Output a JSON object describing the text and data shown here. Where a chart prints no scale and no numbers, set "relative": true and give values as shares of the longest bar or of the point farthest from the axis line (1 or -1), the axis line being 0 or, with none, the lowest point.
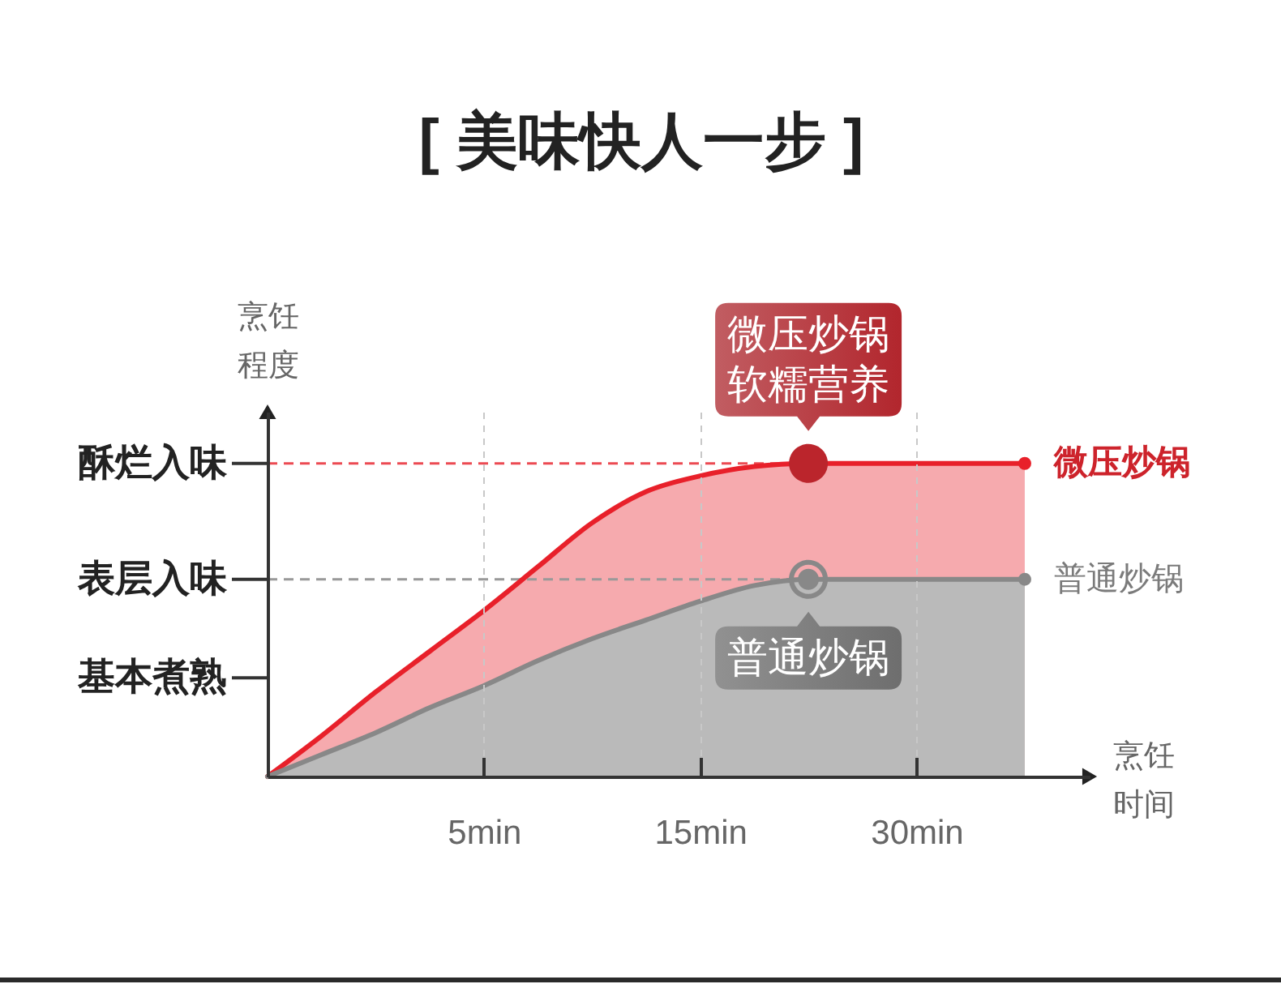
{
  "chart_data": {
    "type": "area",
    "title": "[ 美味快人一步 ]",
    "xlabel": "烹饪时间",
    "ylabel": "烹饪程度",
    "relative": true,
    "categories": [
      null,
      null,
      null,
      null,
      "5min",
      null,
      null,
      null,
      "15min",
      null,
      null,
      null,
      "30min",
      null,
      null
    ],
    "grid": "x",
    "series": [
      {
        "name": "微压炒锅",
        "color": "#e8202a",
        "values": [
          0,
          0.13,
          0.27,
          0.4,
          0.53,
          0.67,
          0.81,
          0.91,
          0.96,
          0.99,
          1,
          1,
          1,
          1,
          1
        ]
      },
      {
        "name": "普通炒锅",
        "color": "#888888",
        "values": [
          0,
          0.07,
          0.14,
          0.22,
          0.29,
          0.37,
          0.44,
          0.5,
          0.56,
          0.61,
          0.63,
          0.63,
          0.63,
          0.63,
          0.63
        ]
      }
    ],
    "ref_lines": [
      {
        "axis": "y",
        "value": 1,
        "label": "酥烂入味",
        "color": "#ec4a52",
        "line_style": "dashed"
      },
      {
        "axis": "y",
        "value": 0.63,
        "label": "表层入味",
        "color": "#999999",
        "line_style": "dashed"
      }
    ],
    "annotations": [
      {
        "text": "微压炒锅软糯营养",
        "y": 1
      },
      {
        "text": "普通炒锅",
        "y": 0.63
      },
      "基本煮熟"
    ]
  }
}
